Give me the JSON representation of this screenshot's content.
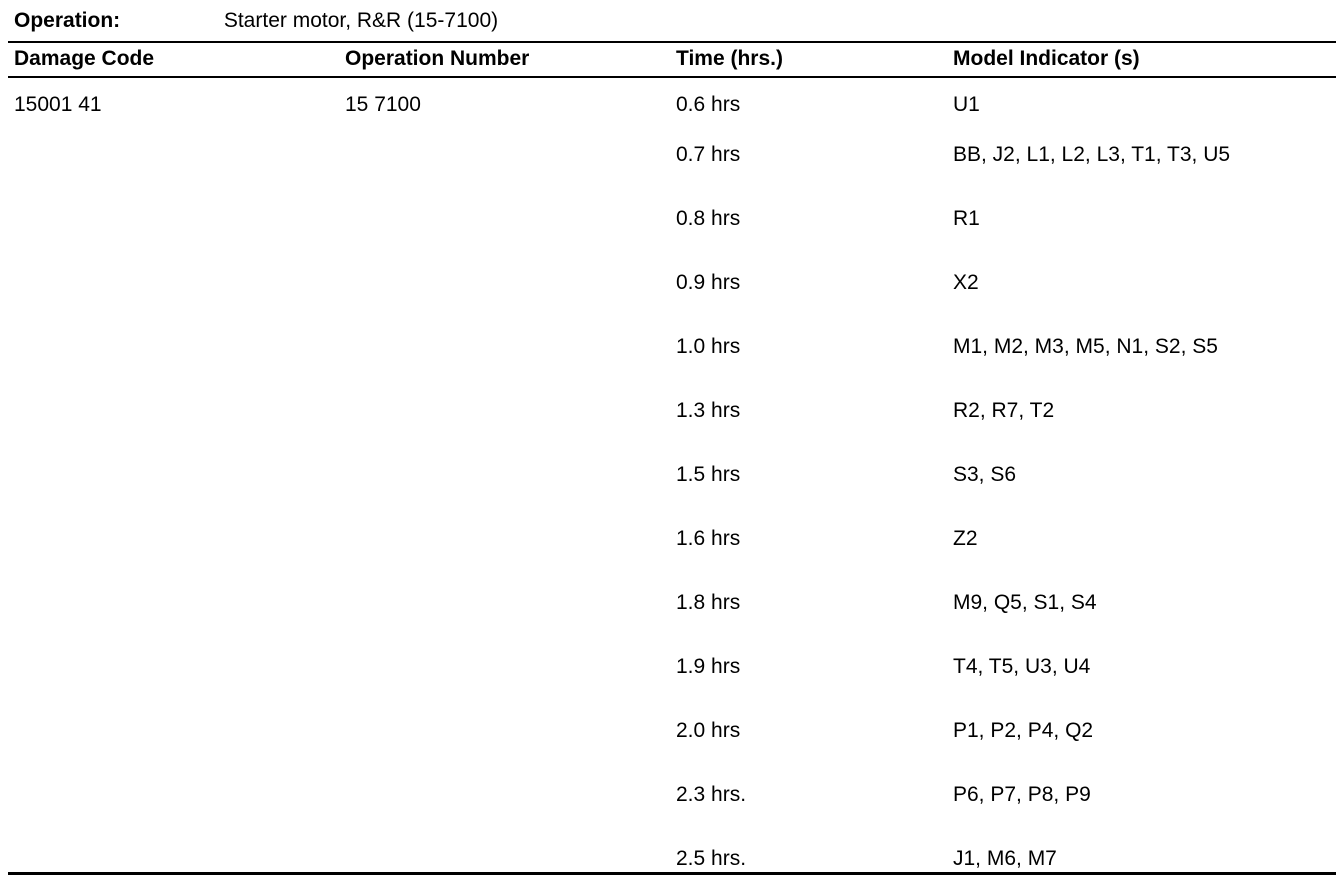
{
  "operation": {
    "label": "Operation:",
    "value": "Starter motor, R&R (15-7100)"
  },
  "table": {
    "headers": [
      "Damage Code",
      "Operation Number",
      "Time (hrs.)",
      "Model Indicator (s)"
    ],
    "damage_code": "15001 41",
    "operation_number": "15 7100",
    "rows": [
      {
        "time": "0.6 hrs",
        "models": "U1"
      },
      {
        "time": "0.7 hrs",
        "models": "BB, J2, L1, L2, L3, T1, T3, U5"
      },
      {
        "time": "0.8 hrs",
        "models": "R1"
      },
      {
        "time": "0.9 hrs",
        "models": "X2"
      },
      {
        "time": "1.0 hrs",
        "models": "M1, M2, M3, M5, N1, S2, S5"
      },
      {
        "time": "1.3 hrs",
        "models": "R2, R7, T2"
      },
      {
        "time": "1.5 hrs",
        "models": "S3, S6"
      },
      {
        "time": "1.6 hrs",
        "models": "Z2"
      },
      {
        "time": "1.8 hrs",
        "models": "M9, Q5, S1, S4"
      },
      {
        "time": "1.9 hrs",
        "models": "T4, T5, U3, U4"
      },
      {
        "time": "2.0 hrs",
        "models": "P1, P2, P4, Q2"
      },
      {
        "time": "2.3 hrs.",
        "models": "P6, P7, P8, P9"
      },
      {
        "time": "2.5 hrs.",
        "models": "J1, M6, M7"
      }
    ]
  }
}
